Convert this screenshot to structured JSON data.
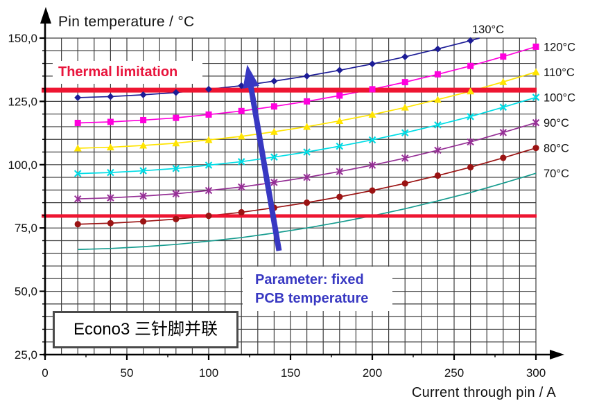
{
  "chart_data": {
    "type": "line",
    "title": "Pin temperature / °C",
    "xlabel": "Current through pin / A",
    "ylabel": "Pin temperature / °C",
    "xlim": [
      0,
      300
    ],
    "ylim": [
      25,
      150
    ],
    "grid": {
      "on": true,
      "x_step": 10,
      "y_step": 5,
      "color": "#3d3d3d"
    },
    "x_tick_values": [
      0,
      50,
      100,
      150,
      200,
      250,
      300
    ],
    "x_tick_labels": [
      "0",
      "50",
      "100",
      "150",
      "200",
      "250",
      "300"
    ],
    "y_tick_values": [
      150,
      125,
      100,
      75,
      50,
      25
    ],
    "y_tick_labels": [
      "150,0",
      "125,0",
      "100,0",
      "75,0",
      "50,0",
      "25,0"
    ],
    "legend_position": "right-edge-labels",
    "series": [
      {
        "name": "PCB 130°C",
        "label": "130°C",
        "color": "#1c1c96",
        "marker": "diamond",
        "label_pos": "top",
        "x": [
          20,
          40,
          60,
          80,
          100,
          120,
          140,
          160,
          180,
          200,
          220,
          240,
          260
        ],
        "y": [
          126.5,
          126.9,
          127.6,
          128.5,
          129.8,
          131.2,
          133.0,
          135.0,
          137.3,
          139.8,
          142.6,
          145.7,
          149.0
        ],
        "exit_point": [
          265.5,
          150
        ]
      },
      {
        "name": "PCB 120°C",
        "label": "120°C",
        "color": "#ff00dd",
        "marker": "square",
        "label_pos": "right",
        "x": [
          20,
          40,
          60,
          80,
          100,
          120,
          140,
          160,
          180,
          200,
          220,
          240,
          260,
          280,
          300
        ],
        "y": [
          116.5,
          116.9,
          117.6,
          118.5,
          119.8,
          121.2,
          123.0,
          125.0,
          127.3,
          129.8,
          132.6,
          135.7,
          139.0,
          142.7,
          146.6
        ]
      },
      {
        "name": "PCB 110°C",
        "label": "110°C",
        "color": "#ffe400",
        "marker": "triangle",
        "label_pos": "right",
        "x": [
          20,
          40,
          60,
          80,
          100,
          120,
          140,
          160,
          180,
          200,
          220,
          240,
          260,
          280,
          300
        ],
        "y": [
          106.5,
          106.9,
          107.6,
          108.5,
          109.8,
          111.2,
          113.0,
          115.0,
          117.3,
          119.8,
          122.6,
          125.7,
          129.0,
          132.7,
          136.6
        ]
      },
      {
        "name": "PCB 100°C",
        "label": "100°C",
        "color": "#00dde6",
        "marker": "x",
        "label_pos": "right",
        "x": [
          20,
          40,
          60,
          80,
          100,
          120,
          140,
          160,
          180,
          200,
          220,
          240,
          260,
          280,
          300
        ],
        "y": [
          96.5,
          96.9,
          97.6,
          98.5,
          99.8,
          101.2,
          103.0,
          105.0,
          107.3,
          109.8,
          112.6,
          115.7,
          119.0,
          122.7,
          126.6
        ]
      },
      {
        "name": "PCB 90°C",
        "label": "90°C",
        "color": "#952f95",
        "marker": "asterisk",
        "label_pos": "right",
        "x": [
          20,
          40,
          60,
          80,
          100,
          120,
          140,
          160,
          180,
          200,
          220,
          240,
          260,
          280,
          300
        ],
        "y": [
          86.5,
          86.9,
          87.6,
          88.5,
          89.8,
          91.2,
          93.0,
          95.0,
          97.3,
          99.8,
          102.6,
          105.7,
          109.0,
          112.7,
          116.6
        ]
      },
      {
        "name": "PCB 80°C",
        "label": "80°C",
        "color": "#9b1313",
        "marker": "circle",
        "label_pos": "right",
        "x": [
          20,
          40,
          60,
          80,
          100,
          120,
          140,
          160,
          180,
          200,
          220,
          240,
          260,
          280,
          300
        ],
        "y": [
          76.5,
          76.9,
          77.6,
          78.5,
          79.8,
          81.2,
          83.0,
          85.0,
          87.3,
          89.8,
          92.6,
          95.7,
          99.0,
          102.7,
          106.6
        ]
      },
      {
        "name": "PCB 70°C",
        "label": "70°C",
        "color": "#169c8f",
        "marker": "none",
        "label_pos": "right",
        "x": [
          20,
          40,
          60,
          80,
          100,
          120,
          140,
          160,
          180,
          200,
          220,
          240,
          260,
          280,
          300
        ],
        "y": [
          66.5,
          66.9,
          67.6,
          68.5,
          69.8,
          71.2,
          73.0,
          75.0,
          77.3,
          79.8,
          82.6,
          85.7,
          89.0,
          92.7,
          96.6
        ]
      }
    ],
    "limit_lines": [
      {
        "value": 130,
        "color": "#ee1531",
        "width": 7
      },
      {
        "value": 80.3,
        "color": "#ee1531",
        "width": 5
      }
    ],
    "arrow": {
      "from_data": [
        143,
        66
      ],
      "tip_data": [
        123.5,
        139.5
      ],
      "color": "#3838c2"
    },
    "annotations": {
      "thermal": "Thermal limitation",
      "parameter_line1": "Parameter: fixed",
      "parameter_line2": "PCB temperature",
      "device_box": "Econo3 三针脚并联"
    },
    "colors": {
      "axis": "#000000",
      "tick_text": "#111111",
      "accent_red": "#ee1531",
      "accent_blue": "#3838c2"
    }
  }
}
